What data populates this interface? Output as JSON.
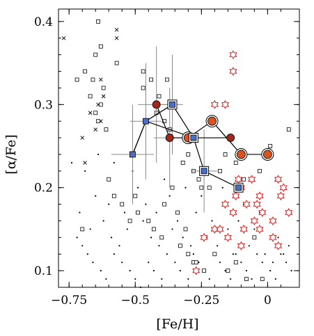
{
  "chart_data": {
    "type": "scatter",
    "title": "",
    "xlabel": "[Fe/H]",
    "ylabel": "[α/Fe]",
    "xlim": [
      -0.79,
      0.12
    ],
    "ylim": [
      0.08,
      0.415
    ],
    "xticks": [
      {
        "value": -0.75,
        "label": "−0.75"
      },
      {
        "value": -0.5,
        "label": "−0.5"
      },
      {
        "value": -0.25,
        "label": "−0.25"
      },
      {
        "value": 0,
        "label": "0"
      }
    ],
    "yticks": [
      {
        "value": 0.1,
        "label": "0.1"
      },
      {
        "value": 0.2,
        "label": "0.2"
      },
      {
        "value": 0.3,
        "label": "0.3"
      },
      {
        "value": 0.4,
        "label": "0.4"
      }
    ],
    "grid": false,
    "legend": false,
    "colors": {
      "blue_square": "#4a6fc4",
      "red_circle": "#a0291c",
      "orange_circle": "#d9551f",
      "red_star": "#d42020",
      "open_square": "#000000",
      "error_bar": "#888888"
    },
    "series": [
      {
        "marker": "blue-square",
        "x": [
          -0.51,
          -0.46,
          -0.36,
          -0.28,
          -0.24,
          -0.11
        ],
        "y": [
          0.24,
          0.28,
          0.3,
          0.26,
          0.22,
          0.2
        ],
        "xerr": [
          0.08,
          0.06,
          0.04,
          0.1,
          0.05,
          0.0
        ],
        "yerr": [
          0.06,
          0.07,
          0.06,
          0.0,
          0.05,
          0.0
        ],
        "connections": [
          [
            0,
            1
          ],
          [
            1,
            2
          ],
          [
            2,
            3
          ],
          [
            3,
            4
          ],
          [
            4,
            5
          ],
          [
            1,
            3
          ],
          [
            0,
            1
          ]
        ]
      },
      {
        "marker": "red-circle",
        "x": [
          -0.42,
          -0.37,
          -0.14
        ],
        "y": [
          0.3,
          0.26,
          0.26
        ],
        "xerr": [
          0.07,
          0.06,
          0.0
        ],
        "yerr": [
          0.07,
          0.06,
          0.0
        ],
        "connections": [
          [
            0,
            1
          ],
          [
            1,
            2
          ]
        ]
      },
      {
        "marker": "orange-circle-ringed",
        "x": [
          -0.3,
          -0.21,
          -0.1,
          0.0
        ],
        "y": [
          0.26,
          0.28,
          0.24,
          0.24
        ],
        "connections": [
          [
            0,
            1
          ],
          [
            1,
            2
          ],
          [
            2,
            3
          ]
        ]
      },
      {
        "marker": "red-star",
        "x": [
          -0.13,
          -0.13,
          -0.2,
          -0.16,
          -0.11,
          -0.1,
          -0.06,
          -0.03,
          -0.04,
          0.04,
          0.06,
          0.08,
          0.05,
          -0.08,
          -0.05,
          -0.02,
          -0.09,
          -0.12,
          -0.16,
          -0.2,
          -0.24,
          -0.15,
          -0.1,
          -0.03,
          0.02,
          0.04,
          -0.27,
          0.02,
          -0.18,
          -0.13
        ],
        "y": [
          0.36,
          0.34,
          0.3,
          0.3,
          0.21,
          0.2,
          0.21,
          0.19,
          0.18,
          0.21,
          0.2,
          0.17,
          0.19,
          0.18,
          0.16,
          0.17,
          0.15,
          0.19,
          0.18,
          0.15,
          0.14,
          0.14,
          0.13,
          0.15,
          0.14,
          0.13,
          0.1,
          0.16,
          0.15,
          0.17
        ]
      },
      {
        "marker": "open-square",
        "x": [
          -0.64,
          -0.63,
          -0.65,
          -0.69,
          -0.72,
          -0.66,
          -0.62,
          -0.57,
          -0.67,
          -0.63,
          -0.65,
          -0.64,
          -0.61,
          -0.47,
          -0.44,
          -0.47,
          -0.38,
          -0.41,
          -0.35,
          -0.42,
          -0.39,
          -0.37,
          -0.3,
          -0.32,
          -0.28,
          -0.26,
          -0.25,
          -0.22,
          -0.18,
          -0.16,
          -0.12,
          -0.09,
          -0.03,
          0.01,
          0.08,
          -0.6,
          -0.58,
          -0.55,
          -0.5,
          -0.49,
          -0.52,
          -0.45,
          -0.43,
          -0.4,
          -0.33,
          -0.3,
          -0.28,
          -0.24,
          -0.2,
          -0.15,
          -0.12,
          -0.08,
          -0.05,
          -0.02,
          -0.36,
          -0.39,
          -0.34,
          -0.31,
          -0.27,
          -0.7
        ],
        "y": [
          0.4,
          0.37,
          0.36,
          0.34,
          0.33,
          0.33,
          0.32,
          0.35,
          0.31,
          0.3,
          0.29,
          0.28,
          0.27,
          0.34,
          0.33,
          0.32,
          0.33,
          0.31,
          0.3,
          0.29,
          0.28,
          0.27,
          0.24,
          0.23,
          0.22,
          0.21,
          0.2,
          0.2,
          0.22,
          0.24,
          0.23,
          0.21,
          0.22,
          0.25,
          0.27,
          0.21,
          0.19,
          0.18,
          0.19,
          0.17,
          0.16,
          0.16,
          0.15,
          0.14,
          0.13,
          0.12,
          0.11,
          0.1,
          0.12,
          0.1,
          0.11,
          0.09,
          0.14,
          0.09,
          0.2,
          0.18,
          0.17,
          0.15,
          0.11,
          0.15
        ]
      },
      {
        "marker": "cross",
        "x": [
          -0.77,
          -0.57,
          -0.57,
          -0.63,
          -0.62,
          -0.64,
          -0.67,
          -0.63,
          -0.65,
          -0.7,
          -0.69
        ],
        "y": [
          0.38,
          0.39,
          0.38,
          0.33,
          0.31,
          0.3,
          0.29,
          0.28,
          0.27,
          0.26,
          0.23
        ]
      },
      {
        "marker": "dot",
        "x": [
          -0.72,
          -0.7,
          -0.68,
          -0.66,
          -0.63,
          -0.61,
          -0.58,
          -0.55,
          -0.52,
          -0.5,
          -0.48,
          -0.45,
          -0.43,
          -0.4,
          -0.38,
          -0.35,
          -0.33,
          -0.3,
          -0.28,
          -0.26,
          -0.24,
          -0.22,
          -0.2,
          -0.18,
          -0.16,
          -0.14,
          -0.12,
          -0.1,
          -0.08,
          -0.06,
          -0.04,
          -0.02,
          0.01,
          0.03,
          0.05,
          0.07,
          0.09,
          -0.71,
          -0.67,
          -0.62,
          -0.59,
          -0.56,
          -0.53,
          -0.47,
          -0.44,
          -0.41,
          -0.36,
          -0.32,
          -0.29,
          -0.23,
          -0.19,
          -0.13,
          -0.07,
          -0.01,
          0.04,
          0.08,
          -0.65,
          -0.6,
          -0.54,
          -0.49,
          -0.46,
          -0.42,
          -0.37,
          -0.34,
          -0.27,
          -0.21,
          -0.15,
          -0.11,
          -0.05,
          0.02,
          0.06,
          -0.74,
          -0.69,
          -0.64,
          -0.58,
          -0.51,
          -0.39,
          -0.31,
          -0.25,
          -0.17,
          -0.09,
          -0.03
        ],
        "y": [
          0.14,
          0.13,
          0.12,
          0.11,
          0.1,
          0.09,
          0.12,
          0.11,
          0.1,
          0.09,
          0.08,
          0.11,
          0.1,
          0.09,
          0.12,
          0.11,
          0.1,
          0.09,
          0.12,
          0.11,
          0.1,
          0.09,
          0.12,
          0.11,
          0.1,
          0.09,
          0.12,
          0.11,
          0.1,
          0.09,
          0.12,
          0.11,
          0.1,
          0.09,
          0.12,
          0.11,
          0.1,
          0.17,
          0.15,
          0.16,
          0.14,
          0.13,
          0.15,
          0.16,
          0.14,
          0.13,
          0.15,
          0.14,
          0.13,
          0.14,
          0.13,
          0.12,
          0.13,
          0.12,
          0.14,
          0.13,
          0.19,
          0.18,
          0.17,
          0.2,
          0.18,
          0.17,
          0.19,
          0.16,
          0.17,
          0.16,
          0.15,
          0.16,
          0.15,
          0.11,
          0.12,
          0.23,
          0.22,
          0.24,
          0.23,
          0.22,
          0.21,
          0.2,
          0.19,
          0.2,
          0.18,
          0.17
        ]
      }
    ]
  }
}
